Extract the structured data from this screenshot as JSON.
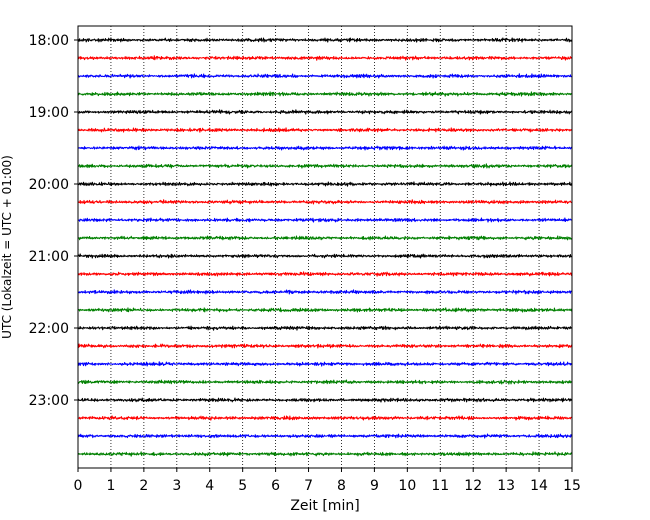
{
  "chart_data": {
    "type": "line",
    "title": "",
    "xlabel": "Zeit  [min]",
    "ylabel": "UTC (Lokalzeit = UTC + 01:00)",
    "xlim": [
      0,
      15
    ],
    "x_ticks": [
      "0",
      "1",
      "2",
      "3",
      "4",
      "5",
      "6",
      "7",
      "8",
      "9",
      "10",
      "11",
      "12",
      "13",
      "14",
      "15"
    ],
    "y_ticks": [
      "18:00",
      "19:00",
      "20:00",
      "21:00",
      "22:00",
      "23:00"
    ],
    "vertical_grid": true,
    "trace_interval_minutes": 15,
    "start_time": "18:00",
    "end_time": "23:45",
    "trace_colors": [
      "#000000",
      "#ff0000",
      "#0000ff",
      "#008000"
    ],
    "traces": [
      {
        "time": "18:00",
        "color": "#000000"
      },
      {
        "time": "18:15",
        "color": "#ff0000"
      },
      {
        "time": "18:30",
        "color": "#0000ff"
      },
      {
        "time": "18:45",
        "color": "#008000"
      },
      {
        "time": "19:00",
        "color": "#000000"
      },
      {
        "time": "19:15",
        "color": "#ff0000"
      },
      {
        "time": "19:30",
        "color": "#0000ff"
      },
      {
        "time": "19:45",
        "color": "#008000"
      },
      {
        "time": "20:00",
        "color": "#000000"
      },
      {
        "time": "20:15",
        "color": "#ff0000"
      },
      {
        "time": "20:30",
        "color": "#0000ff"
      },
      {
        "time": "20:45",
        "color": "#008000"
      },
      {
        "time": "21:00",
        "color": "#000000"
      },
      {
        "time": "21:15",
        "color": "#ff0000"
      },
      {
        "time": "21:30",
        "color": "#0000ff"
      },
      {
        "time": "21:45",
        "color": "#008000"
      },
      {
        "time": "22:00",
        "color": "#000000"
      },
      {
        "time": "22:15",
        "color": "#ff0000"
      },
      {
        "time": "22:30",
        "color": "#0000ff"
      },
      {
        "time": "22:45",
        "color": "#008000"
      },
      {
        "time": "23:00",
        "color": "#000000"
      },
      {
        "time": "23:15",
        "color": "#ff0000"
      },
      {
        "time": "23:30",
        "color": "#0000ff"
      },
      {
        "time": "23:45",
        "color": "#008000"
      }
    ]
  }
}
